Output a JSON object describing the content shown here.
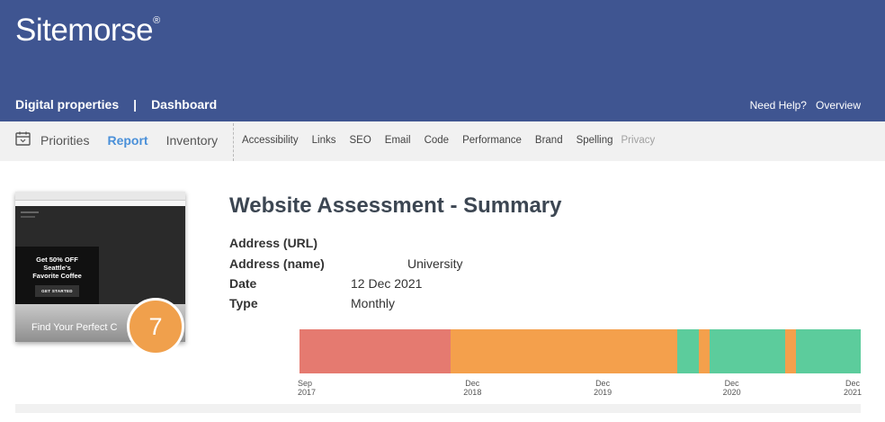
{
  "header": {
    "logo": "Sitemorse",
    "logo_mark": "®",
    "nav_left": [
      "Digital properties",
      "Dashboard"
    ],
    "nav_sep": "|",
    "nav_right": [
      "Need Help?",
      "Overview"
    ]
  },
  "subnav": {
    "main": [
      "Priorities",
      "Report",
      "Inventory"
    ],
    "active": "Report",
    "small": [
      "Accessibility",
      "Links",
      "SEO",
      "Email",
      "Code",
      "Performance",
      "Brand",
      "Spelling"
    ],
    "disabled": "Privacy"
  },
  "thumbnail": {
    "promo_line1": "Get 50% OFF",
    "promo_line2": "Seattle's",
    "promo_line3": "Favorite Coffee",
    "promo_button": "GET STARTED",
    "hero_text": "Find Your Perfect C"
  },
  "score": "7",
  "summary": {
    "title": "Website Assessment - Summary",
    "rows": [
      {
        "label": "Address (URL)",
        "value": ""
      },
      {
        "label": "Address (name)",
        "value": "University"
      },
      {
        "label": "Date",
        "value": "12 Dec 2021"
      },
      {
        "label": "Type",
        "value": "Monthly"
      }
    ]
  },
  "timeline": {
    "start": "Sep 2017",
    "end": "Dec 2021",
    "segments": [
      {
        "from": 0.0,
        "to": 0.269,
        "color": "#e57a70"
      },
      {
        "from": 0.269,
        "to": 0.673,
        "color": "#f4a04c"
      },
      {
        "from": 0.673,
        "to": 0.712,
        "color": "#5ccc9c"
      },
      {
        "from": 0.712,
        "to": 0.731,
        "color": "#f4a04c"
      },
      {
        "from": 0.731,
        "to": 0.865,
        "color": "#5ccc9c"
      },
      {
        "from": 0.865,
        "to": 0.885,
        "color": "#f4a04c"
      },
      {
        "from": 0.885,
        "to": 1.0,
        "color": "#5ccc9c"
      }
    ],
    "ticks": [
      {
        "month": "Sep",
        "year": "2017",
        "pos": 0.0
      },
      {
        "month": "Dec",
        "year": "2018",
        "pos": 0.305
      },
      {
        "month": "Dec",
        "year": "2019",
        "pos": 0.537
      },
      {
        "month": "Dec",
        "year": "2020",
        "pos": 0.767
      },
      {
        "month": "Dec",
        "year": "2021",
        "pos": 1.0
      }
    ]
  },
  "colors": {
    "header_bg": "#3f5591",
    "active_tab": "#4a90d9",
    "score_bg": "#f0a04c"
  }
}
